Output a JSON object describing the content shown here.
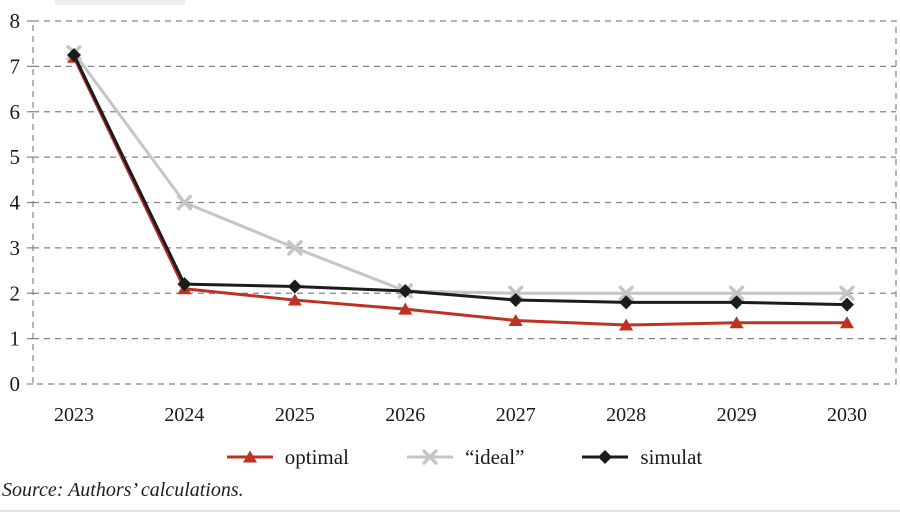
{
  "chart_data": {
    "type": "line",
    "x": [
      "2023",
      "2024",
      "2025",
      "2026",
      "2027",
      "2028",
      "2029",
      "2030"
    ],
    "series": [
      {
        "name": "optimal",
        "marker": "triangle",
        "color": "#bf3123",
        "values": [
          7.2,
          2.1,
          1.85,
          1.65,
          1.4,
          1.3,
          1.35,
          1.35
        ]
      },
      {
        "name": "“ideal”",
        "marker": "x",
        "color": "#c5c5c5",
        "values": [
          7.3,
          4.0,
          3.0,
          2.05,
          2.0,
          2.0,
          2.0,
          2.0
        ]
      },
      {
        "name": "simulat",
        "marker": "diamond",
        "color": "#1c1c1c",
        "values": [
          7.25,
          2.2,
          2.15,
          2.05,
          1.85,
          1.8,
          1.8,
          1.75
        ]
      }
    ],
    "title": "",
    "xlabel": "",
    "ylabel": "",
    "ylim": [
      0,
      8
    ],
    "yticks": [
      0,
      1,
      2,
      3,
      4,
      5,
      6,
      7,
      8
    ],
    "grid": "horizontal-dashed",
    "grid_color": "#838383",
    "axis_text_color": "#1a1a1a",
    "legend_position": "bottom"
  },
  "footer": {
    "source": "Source: Authors’ calculations."
  }
}
